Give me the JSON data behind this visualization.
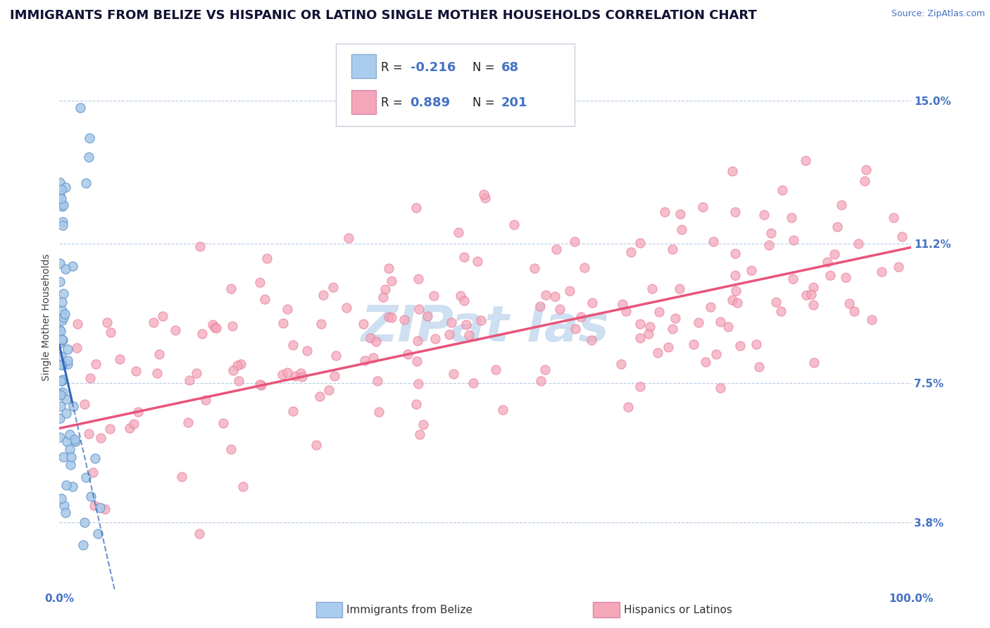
{
  "title": "IMMIGRANTS FROM BELIZE VS HISPANIC OR LATINO SINGLE MOTHER HOUSEHOLDS CORRELATION CHART",
  "source": "Source: ZipAtlas.com",
  "ylabel": "Single Mother Households",
  "xlim": [
    0,
    100
  ],
  "ylim": [
    2.0,
    16.5
  ],
  "yticks": [
    3.8,
    7.5,
    11.2,
    15.0
  ],
  "blue_color": "#4472c4",
  "title_fontsize": 13,
  "axis_label_fontsize": 10,
  "tick_fontsize": 11,
  "watermark_color": "#cddff0",
  "series1_color": "#a8c8e8",
  "series1_edge": "#6699cc",
  "series2_color": "#f4a7b9",
  "series2_edge": "#e87ca0",
  "trend1_color": "#3366bb",
  "trend2_color": "#e8547a",
  "legend_box_color": "#f0f4f8",
  "legend_edge_color": "#bbccdd"
}
